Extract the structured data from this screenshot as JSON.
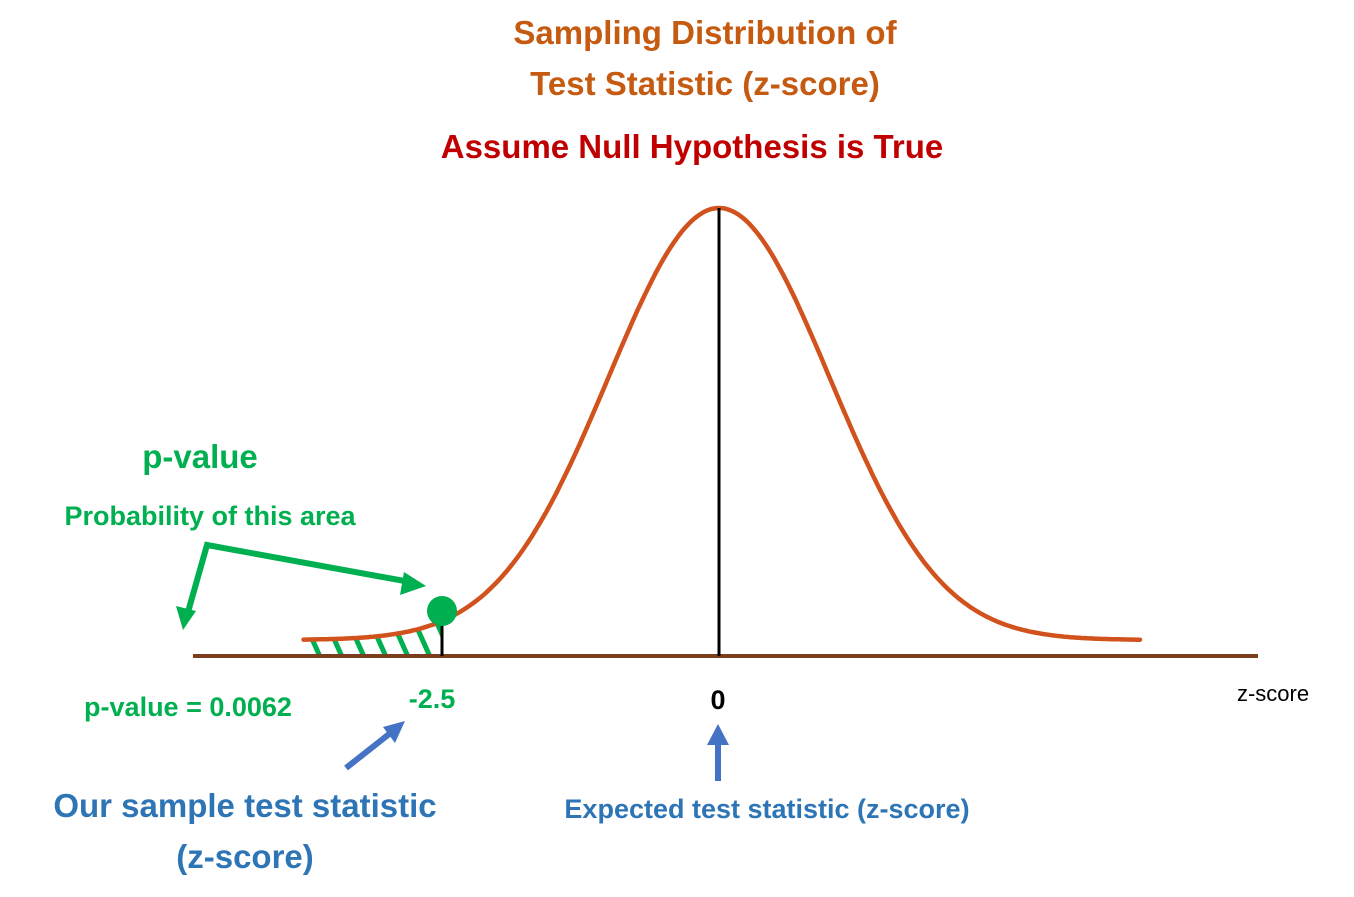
{
  "title": {
    "line1": "Sampling Distribution of",
    "line2": "Test Statistic (z-score)"
  },
  "subtitle": "Assume Null Hypothesis is True",
  "p_value_heading": "p-value",
  "area_caption": "Probability of this area",
  "p_value_result": "p-value = 0.0062",
  "x_axis_label": "z-score",
  "test_statistic": {
    "value": -2.5,
    "label": "-2.5"
  },
  "expected_statistic": {
    "value": 0,
    "label": "0"
  },
  "sample_caption": {
    "line1": "Our sample test statistic",
    "line2": "(z-score)"
  },
  "expected_caption": "Expected test statistic (z-score)",
  "distribution": {
    "mean": 0,
    "sd": 1,
    "x_min": -3.75,
    "x_max": 3.8
  },
  "colors": {
    "title": "#c55a11",
    "subtitle": "#c00000",
    "curve": "#d2521d",
    "axis": "#7b3f1d",
    "highlight": "#00b050",
    "annotation": "#4472c4",
    "caption": "#2e75b6",
    "reference_line": "#000000"
  }
}
